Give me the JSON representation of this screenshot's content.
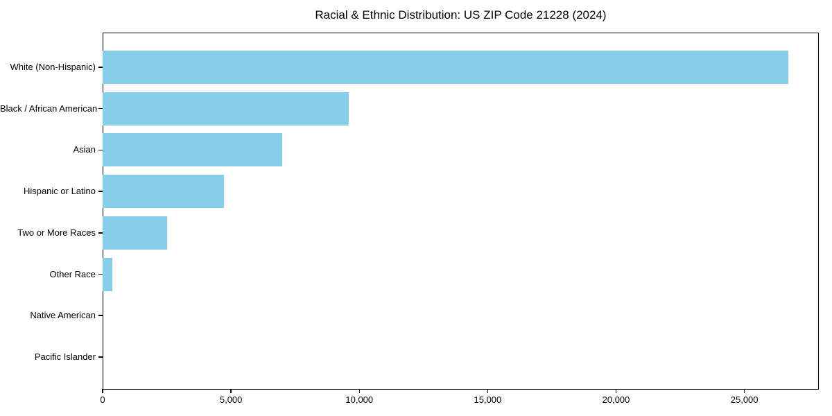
{
  "chart_data": {
    "type": "bar",
    "orientation": "horizontal",
    "title": "Racial & Ethnic Distribution: US ZIP Code 21228 (2024)",
    "categories": [
      "White (Non-Hispanic)",
      "Black / African American",
      "Asian",
      "Hispanic or Latino",
      "Two or More Races",
      "Other Race",
      "Native American",
      "Pacific Islander"
    ],
    "values": [
      26700,
      9590,
      6990,
      4740,
      2500,
      380,
      0,
      0
    ],
    "xlabel": "",
    "ylabel": "",
    "xlim": [
      0,
      27900
    ],
    "x_ticks": [
      0,
      5000,
      10000,
      15000,
      20000,
      25000
    ],
    "x_tick_labels": [
      "0",
      "5,000",
      "10,000",
      "15,000",
      "20,000",
      "25,000"
    ],
    "bar_color": "#87CEEB",
    "spine_color": "#000000",
    "grid": false,
    "legend": null,
    "background": "#ffffff"
  }
}
